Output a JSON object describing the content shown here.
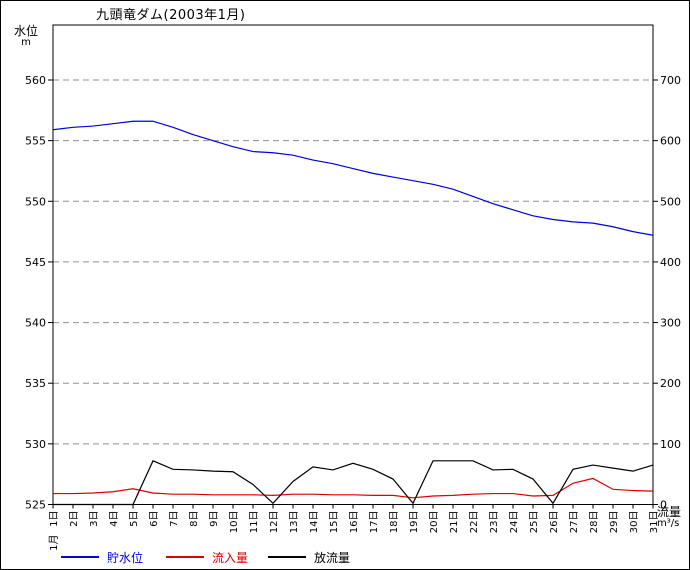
{
  "window": {
    "background": "#ffffff",
    "border_color": "#000000"
  },
  "chart_data": {
    "type": "line",
    "title": "九頭竜ダム(2003年1月)",
    "x_month_label": "1月",
    "x_categories": [
      "1日",
      "2日",
      "3日",
      "4日",
      "5日",
      "6日",
      "7日",
      "8日",
      "9日",
      "10日",
      "11日",
      "12日",
      "13日",
      "14日",
      "15日",
      "16日",
      "17日",
      "18日",
      "19日",
      "20日",
      "21日",
      "22日",
      "23日",
      "24日",
      "25日",
      "26日",
      "27日",
      "28日",
      "29日",
      "30日",
      "31日"
    ],
    "left_axis": {
      "label": "水位",
      "unit": "m",
      "ticks": [
        560,
        555,
        550,
        545,
        540,
        535,
        530,
        525
      ],
      "min": 525,
      "tick_step": 5
    },
    "right_axis": {
      "label": "流量",
      "unit": "m³/s",
      "ticks": [
        700,
        600,
        500,
        400,
        300,
        200,
        100,
        0
      ],
      "min": 0,
      "tick_step": 100
    },
    "grid": {
      "style": "dashed",
      "color": "#909090",
      "horizontal_only": true
    },
    "legend_position": "bottom",
    "series": [
      {
        "id": "storage-level",
        "name": "貯水位",
        "axis": "left",
        "color": "#0000dd",
        "values": [
          555.9,
          556.1,
          556.2,
          556.4,
          556.6,
          556.6,
          556.1,
          555.5,
          555.0,
          554.5,
          554.1,
          554.0,
          553.8,
          553.4,
          553.1,
          552.7,
          552.3,
          552.0,
          551.7,
          551.4,
          551.0,
          550.4,
          549.8,
          549.3,
          548.8,
          548.5,
          548.3,
          548.2,
          547.9,
          547.5,
          547.2
        ]
      },
      {
        "id": "inflow",
        "name": "流入量",
        "axis": "right",
        "color": "#dd0000",
        "values": [
          18,
          18,
          19,
          21,
          26,
          19,
          17,
          17,
          16,
          16,
          16,
          15,
          17,
          17,
          16,
          16,
          15,
          15,
          11,
          14,
          15,
          17,
          18,
          18,
          14,
          15,
          35,
          43,
          25,
          23,
          22
        ]
      },
      {
        "id": "outflow",
        "name": "放流量",
        "axis": "right",
        "color": "#000000",
        "values": [
          0,
          0,
          0,
          0,
          0,
          72,
          58,
          57,
          55,
          54,
          33,
          2,
          38,
          62,
          57,
          68,
          58,
          42,
          2,
          72,
          72,
          72,
          57,
          58,
          42,
          2,
          58,
          65,
          60,
          55,
          65
        ]
      }
    ]
  }
}
